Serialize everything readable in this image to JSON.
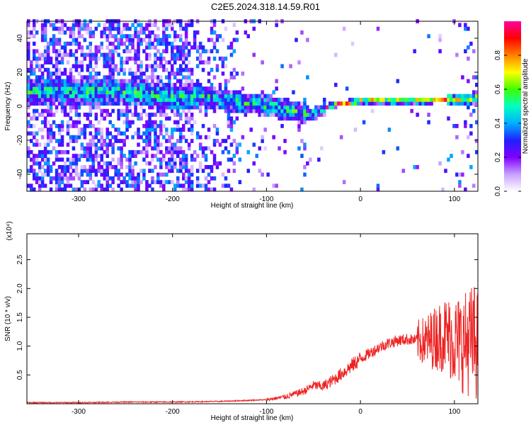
{
  "title": "C2E5.2024.318.14.59.R01",
  "chart_data": [
    {
      "type": "heatmap",
      "xlabel": "Height of straight line (km)",
      "ylabel": "Frequency (Hz)",
      "xlim": [
        -355,
        125
      ],
      "ylim": [
        -50,
        50
      ],
      "xticks": [
        -300,
        -200,
        -100,
        0,
        100
      ],
      "yticks": [
        -40,
        -20,
        0,
        20,
        40
      ],
      "colorbar": {
        "label": "Normalized spectral amplitude",
        "range": [
          0,
          1
        ],
        "ticks": [
          "0.0",
          "0.2",
          "0.4",
          "0.6",
          "0.8"
        ],
        "colormap": [
          "#ffffff",
          "#c8a0ff",
          "#8000ff",
          "#2020ff",
          "#00b0ff",
          "#00ffc0",
          "#40ff00",
          "#ffff00",
          "#ff8000",
          "#ff0000",
          "#ff00a0"
        ]
      },
      "ridge": [
        {
          "x": -260,
          "y": 8
        },
        {
          "x": -230,
          "y": 6
        },
        {
          "x": -200,
          "y": 4
        },
        {
          "x": -170,
          "y": 5
        },
        {
          "x": -140,
          "y": 2
        },
        {
          "x": -110,
          "y": 0
        },
        {
          "x": -90,
          "y": -2
        },
        {
          "x": -70,
          "y": -4
        },
        {
          "x": -55,
          "y": -6
        },
        {
          "x": -45,
          "y": -4
        },
        {
          "x": -35,
          "y": -1
        },
        {
          "x": -20,
          "y": 1
        },
        {
          "x": 0,
          "y": 2
        },
        {
          "x": 50,
          "y": 2
        },
        {
          "x": 70,
          "y": 2
        },
        {
          "x": 100,
          "y": 3
        },
        {
          "x": 125,
          "y": 4
        }
      ]
    },
    {
      "type": "line",
      "xlabel": "Height of straight line (km)",
      "ylabel": "SNR (10 * v/v)",
      "multiplier": "(x10⁴)",
      "xlim": [
        -355,
        125
      ],
      "ylim": [
        0,
        2.95
      ],
      "xticks": [
        -300,
        -200,
        -100,
        0,
        100
      ],
      "yticks": [
        "0.5",
        "1.0",
        "1.5",
        "2.0",
        "2.5"
      ],
      "line_color": "#ee2222",
      "series": [
        {
          "x": [
            -355,
            -300,
            -250,
            -200,
            -150,
            -100,
            -80,
            -60,
            -50,
            -40,
            -30,
            -20,
            -10,
            0,
            10,
            20,
            30,
            40,
            50,
            60,
            70,
            80,
            90,
            100,
            110,
            120,
            125
          ],
          "y": [
            0.02,
            0.02,
            0.03,
            0.03,
            0.04,
            0.07,
            0.12,
            0.22,
            0.32,
            0.3,
            0.4,
            0.52,
            0.65,
            0.78,
            0.88,
            0.98,
            1.05,
            1.1,
            1.12,
            1.1,
            1.08,
            1.15,
            1.2,
            1.1,
            1.05,
            1.1,
            1.05
          ]
        }
      ]
    }
  ]
}
